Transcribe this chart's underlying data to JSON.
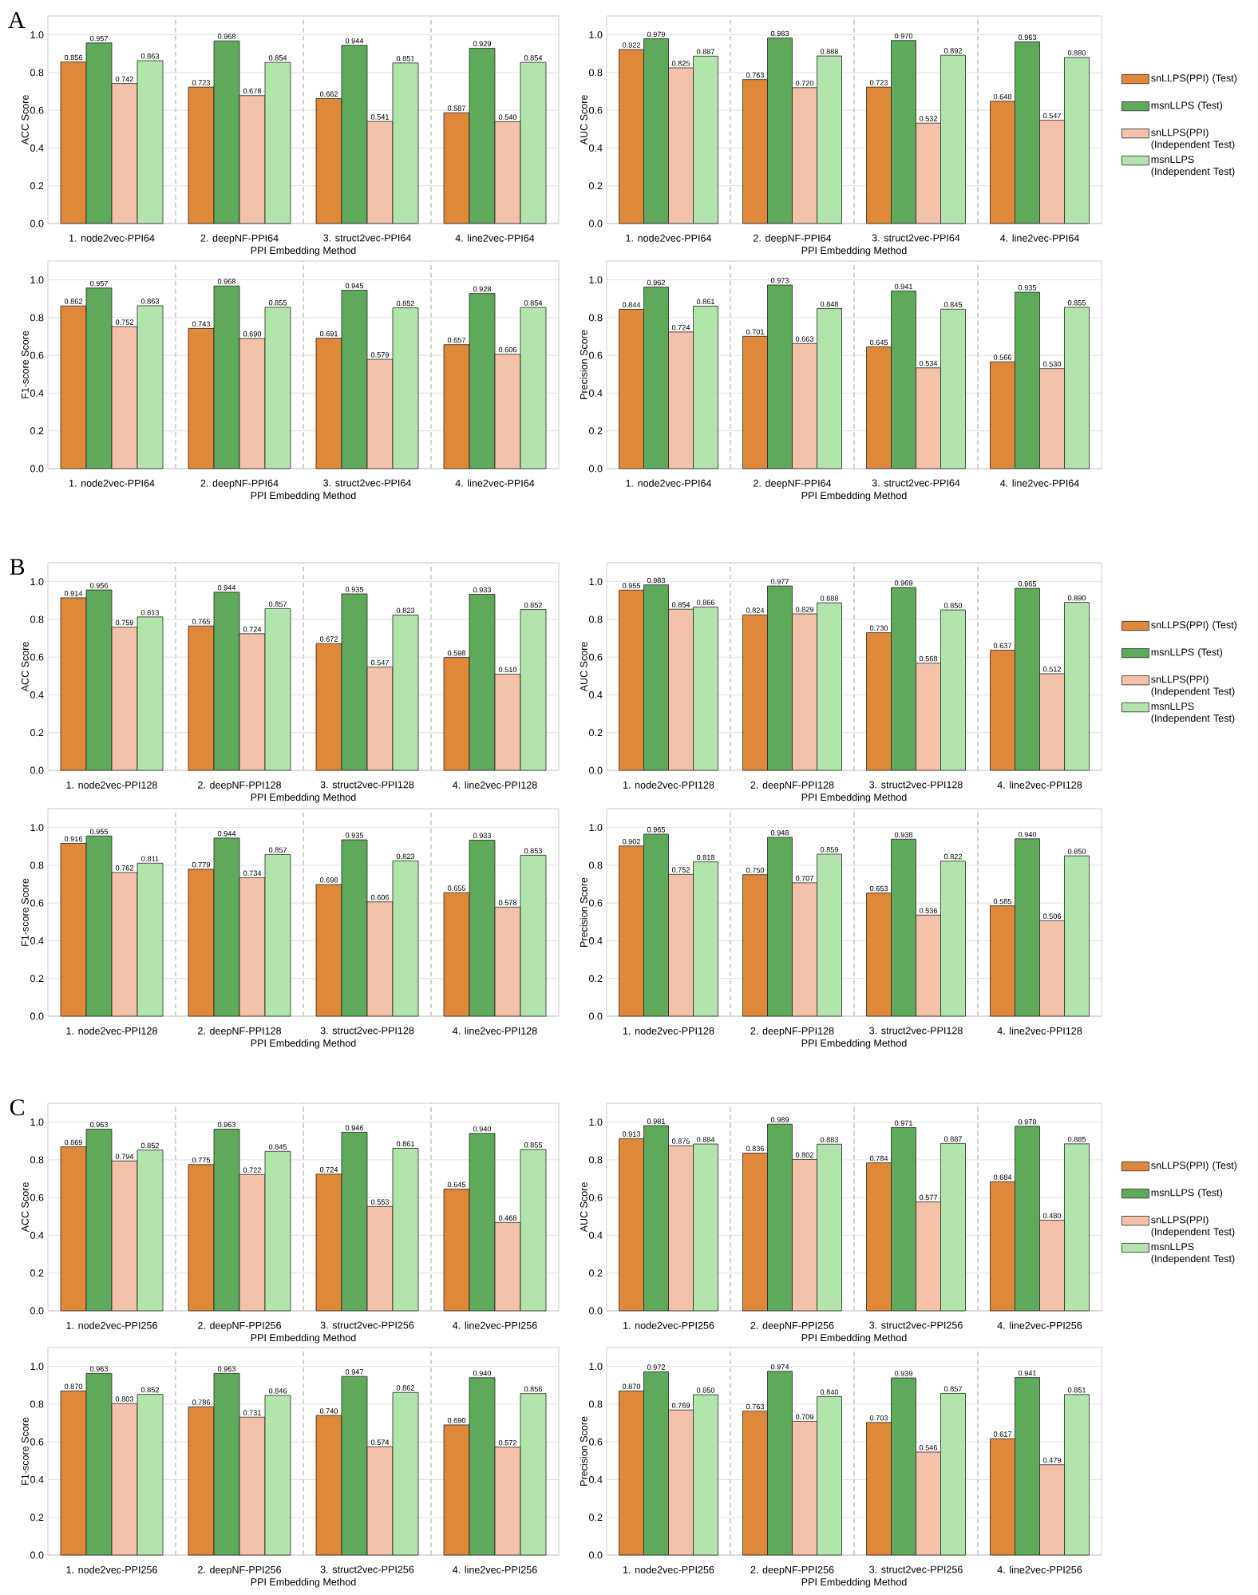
{
  "chart_data": [
    {
      "type": "bar",
      "annotations": [
        "A"
      ],
      "categories": [
        "1. node2vec-PPI64",
        "2. deepNF-PPI64",
        "3. struct2vec-PPI64",
        "4. line2vec-PPI64"
      ],
      "xlabel": "PPI Embedding Method",
      "ylabel": "ACC Score",
      "ylim": [
        0,
        1.1
      ],
      "yticks": [
        {
          "value": 0,
          "label": "0.0"
        },
        {
          "value": 0.2,
          "label": "0.2"
        },
        {
          "value": 0.4,
          "label": "0.4"
        },
        {
          "value": 0.6,
          "label": "0.6"
        },
        {
          "value": 0.8,
          "label": "0.8"
        },
        {
          "value": 1,
          "label": "1.0"
        }
      ],
      "grid": "y",
      "series": [
        {
          "color": "#e0883a",
          "values": [
            0.856,
            0.723,
            0.662,
            0.587
          ],
          "value_labels": [
            "0.856",
            "0.723",
            "0.662",
            "0.587"
          ]
        },
        {
          "color": "#5ea95a",
          "values": [
            0.957,
            0.968,
            0.944,
            0.929
          ],
          "value_labels": [
            "0.957",
            "0.968",
            "0.944",
            "0.929"
          ]
        },
        {
          "color": "#f4c2a9",
          "values": [
            0.742,
            0.678,
            0.541,
            0.54
          ],
          "value_labels": [
            "0.742",
            "0.678",
            "0.541",
            "0.540"
          ]
        },
        {
          "color": "#b2e5ab",
          "values": [
            0.863,
            0.854,
            0.851,
            0.854
          ],
          "value_labels": [
            "0.863",
            "0.854",
            "0.851",
            "0.854"
          ]
        }
      ]
    },
    {
      "type": "bar",
      "legend": "right",
      "categories": [
        "1. node2vec-PPI64",
        "2. deepNF-PPI64",
        "3. struct2vec-PPI64",
        "4. line2vec-PPI64"
      ],
      "xlabel": "PPI Embedding Method",
      "ylabel": "AUC Score",
      "ylim": [
        0,
        1.1
      ],
      "yticks": [
        {
          "value": 0,
          "label": "0.0"
        },
        {
          "value": 0.2,
          "label": "0.2"
        },
        {
          "value": 0.4,
          "label": "0.4"
        },
        {
          "value": 0.6,
          "label": "0.6"
        },
        {
          "value": 0.8,
          "label": "0.8"
        },
        {
          "value": 1,
          "label": "1.0"
        }
      ],
      "grid": "y",
      "series": [
        {
          "name": "snLLPS(PPI) (Test)",
          "color": "#e0883a",
          "values": [
            0.922,
            0.763,
            0.723,
            0.648
          ],
          "value_labels": [
            "0.922",
            "0.763",
            "0.723",
            "0.648"
          ]
        },
        {
          "name": "msnLLPS (Test)",
          "color": "#5ea95a",
          "values": [
            0.979,
            0.983,
            0.97,
            0.963
          ],
          "value_labels": [
            "0.979",
            "0.983",
            "0.970",
            "0.963"
          ]
        },
        {
          "name": "snLLPS(PPI) (Independent Test)",
          "color": "#f4c2a9",
          "values": [
            0.825,
            0.72,
            0.532,
            0.547
          ],
          "value_labels": [
            "0.825",
            "0.720",
            "0.532",
            "0.547"
          ]
        },
        {
          "name": "msnLLPS (Independent Test)",
          "color": "#b2e5ab",
          "values": [
            0.887,
            0.888,
            0.892,
            0.88
          ],
          "value_labels": [
            "0.887",
            "0.888",
            "0.892",
            "0.880"
          ]
        }
      ]
    },
    {
      "type": "bar",
      "categories": [
        "1. node2vec-PPI64",
        "2. deepNF-PPI64",
        "3. struct2vec-PPI64",
        "4. line2vec-PPI64"
      ],
      "xlabel": "PPI Embedding Method",
      "ylabel": "F1-score Score",
      "ylim": [
        0,
        1.1
      ],
      "yticks": [
        {
          "value": 0,
          "label": "0.0"
        },
        {
          "value": 0.2,
          "label": "0.2"
        },
        {
          "value": 0.4,
          "label": "0.4"
        },
        {
          "value": 0.6,
          "label": "0.6"
        },
        {
          "value": 0.8,
          "label": "0.8"
        },
        {
          "value": 1,
          "label": "1.0"
        }
      ],
      "grid": "y",
      "series": [
        {
          "color": "#e0883a",
          "values": [
            0.862,
            0.743,
            0.691,
            0.657
          ],
          "value_labels": [
            "0.862",
            "0.743",
            "0.691",
            "0.657"
          ]
        },
        {
          "color": "#5ea95a",
          "values": [
            0.957,
            0.968,
            0.945,
            0.928
          ],
          "value_labels": [
            "0.957",
            "0.968",
            "0.945",
            "0.928"
          ]
        },
        {
          "color": "#f4c2a9",
          "values": [
            0.752,
            0.69,
            0.579,
            0.606
          ],
          "value_labels": [
            "0.752",
            "0.690",
            "0.579",
            "0.606"
          ]
        },
        {
          "color": "#b2e5ab",
          "values": [
            0.863,
            0.855,
            0.852,
            0.854
          ],
          "value_labels": [
            "0.863",
            "0.855",
            "0.852",
            "0.854"
          ]
        }
      ]
    },
    {
      "type": "bar",
      "categories": [
        "1. node2vec-PPI64",
        "2. deepNF-PPI64",
        "3. struct2vec-PPI64",
        "4. line2vec-PPI64"
      ],
      "xlabel": "PPI Embedding Method",
      "ylabel": "Precision Score",
      "ylim": [
        0,
        1.1
      ],
      "yticks": [
        {
          "value": 0,
          "label": "0.0"
        },
        {
          "value": 0.2,
          "label": "0.2"
        },
        {
          "value": 0.4,
          "label": "0.4"
        },
        {
          "value": 0.6,
          "label": "0.6"
        },
        {
          "value": 0.8,
          "label": "0.8"
        },
        {
          "value": 1,
          "label": "1.0"
        }
      ],
      "grid": "y",
      "series": [
        {
          "color": "#e0883a",
          "values": [
            0.844,
            0.701,
            0.645,
            0.566
          ],
          "value_labels": [
            "0.844",
            "0.701",
            "0.645",
            "0.566"
          ]
        },
        {
          "color": "#5ea95a",
          "values": [
            0.962,
            0.973,
            0.941,
            0.935
          ],
          "value_labels": [
            "0.962",
            "0.973",
            "0.941",
            "0.935"
          ]
        },
        {
          "color": "#f4c2a9",
          "values": [
            0.724,
            0.663,
            0.534,
            0.53
          ],
          "value_labels": [
            "0.724",
            "0.663",
            "0.534",
            "0.530"
          ]
        },
        {
          "color": "#b2e5ab",
          "values": [
            0.861,
            0.848,
            0.845,
            0.855
          ],
          "value_labels": [
            "0.861",
            "0.848",
            "0.845",
            "0.855"
          ]
        }
      ]
    },
    {
      "type": "bar",
      "annotations": [
        "B"
      ],
      "categories": [
        "1. node2vec-PPI128",
        "2. deepNF-PPI128",
        "3. struct2vec-PPI128",
        "4. line2vec-PPI128"
      ],
      "xlabel": "PPI Embedding Method",
      "ylabel": "ACC Score",
      "ylim": [
        0,
        1.1
      ],
      "yticks": [
        {
          "value": 0,
          "label": "0.0"
        },
        {
          "value": 0.2,
          "label": "0.2"
        },
        {
          "value": 0.4,
          "label": "0.4"
        },
        {
          "value": 0.6,
          "label": "0.6"
        },
        {
          "value": 0.8,
          "label": "0.8"
        },
        {
          "value": 1,
          "label": "1.0"
        }
      ],
      "grid": "y",
      "series": [
        {
          "color": "#e0883a",
          "values": [
            0.914,
            0.765,
            0.672,
            0.598
          ],
          "value_labels": [
            "0.914",
            "0.765",
            "0.672",
            "0.598"
          ]
        },
        {
          "color": "#5ea95a",
          "values": [
            0.956,
            0.944,
            0.935,
            0.933
          ],
          "value_labels": [
            "0.956",
            "0.944",
            "0.935",
            "0.933"
          ]
        },
        {
          "color": "#f4c2a9",
          "values": [
            0.759,
            0.724,
            0.547,
            0.51
          ],
          "value_labels": [
            "0.759",
            "0.724",
            "0.547",
            "0.510"
          ]
        },
        {
          "color": "#b2e5ab",
          "values": [
            0.813,
            0.857,
            0.823,
            0.852
          ],
          "value_labels": [
            "0.813",
            "0.857",
            "0.823",
            "0.852"
          ]
        }
      ]
    },
    {
      "type": "bar",
      "legend": "right",
      "categories": [
        "1. node2vec-PPI128",
        "2. deepNF-PPI128",
        "3. struct2vec-PPI128",
        "4. line2vec-PPI128"
      ],
      "xlabel": "PPI Embedding Method",
      "ylabel": "AUC Score",
      "ylim": [
        0,
        1.1
      ],
      "yticks": [
        {
          "value": 0,
          "label": "0.0"
        },
        {
          "value": 0.2,
          "label": "0.2"
        },
        {
          "value": 0.4,
          "label": "0.4"
        },
        {
          "value": 0.6,
          "label": "0.6"
        },
        {
          "value": 0.8,
          "label": "0.8"
        },
        {
          "value": 1,
          "label": "1.0"
        }
      ],
      "grid": "y",
      "series": [
        {
          "name": "snLLPS(PPI) (Test)",
          "color": "#e0883a",
          "values": [
            0.955,
            0.824,
            0.73,
            0.637
          ],
          "value_labels": [
            "0.955",
            "0.824",
            "0.730",
            "0.637"
          ]
        },
        {
          "name": "msnLLPS (Test)",
          "color": "#5ea95a",
          "values": [
            0.983,
            0.977,
            0.969,
            0.965
          ],
          "value_labels": [
            "0.983",
            "0.977",
            "0.969",
            "0.965"
          ]
        },
        {
          "name": "snLLPS(PPI) (Independent Test)",
          "color": "#f4c2a9",
          "values": [
            0.854,
            0.829,
            0.568,
            0.512
          ],
          "value_labels": [
            "0.854",
            "0.829",
            "0.568",
            "0.512"
          ]
        },
        {
          "name": "msnLLPS (Independent Test)",
          "color": "#b2e5ab",
          "values": [
            0.866,
            0.888,
            0.85,
            0.89
          ],
          "value_labels": [
            "0.866",
            "0.888",
            "0.850",
            "0.890"
          ]
        }
      ]
    },
    {
      "type": "bar",
      "categories": [
        "1. node2vec-PPI128",
        "2. deepNF-PPI128",
        "3. struct2vec-PPI128",
        "4. line2vec-PPI128"
      ],
      "xlabel": "PPI Embedding Method",
      "ylabel": "F1-score Score",
      "ylim": [
        0,
        1.1
      ],
      "yticks": [
        {
          "value": 0,
          "label": "0.0"
        },
        {
          "value": 0.2,
          "label": "0.2"
        },
        {
          "value": 0.4,
          "label": "0.4"
        },
        {
          "value": 0.6,
          "label": "0.6"
        },
        {
          "value": 0.8,
          "label": "0.8"
        },
        {
          "value": 1,
          "label": "1.0"
        }
      ],
      "grid": "y",
      "series": [
        {
          "color": "#e0883a",
          "values": [
            0.916,
            0.779,
            0.698,
            0.655
          ],
          "value_labels": [
            "0.916",
            "0.779",
            "0.698",
            "0.655"
          ]
        },
        {
          "color": "#5ea95a",
          "values": [
            0.955,
            0.944,
            0.935,
            0.933
          ],
          "value_labels": [
            "0.955",
            "0.944",
            "0.935",
            "0.933"
          ]
        },
        {
          "color": "#f4c2a9",
          "values": [
            0.762,
            0.734,
            0.606,
            0.578
          ],
          "value_labels": [
            "0.762",
            "0.734",
            "0.606",
            "0.578"
          ]
        },
        {
          "color": "#b2e5ab",
          "values": [
            0.811,
            0.857,
            0.823,
            0.853
          ],
          "value_labels": [
            "0.811",
            "0.857",
            "0.823",
            "0.853"
          ]
        }
      ]
    },
    {
      "type": "bar",
      "categories": [
        "1. node2vec-PPI128",
        "2. deepNF-PPI128",
        "3. struct2vec-PPI128",
        "4. line2vec-PPI128"
      ],
      "xlabel": "PPI Embedding Method",
      "ylabel": "Precision Score",
      "ylim": [
        0,
        1.1
      ],
      "yticks": [
        {
          "value": 0,
          "label": "0.0"
        },
        {
          "value": 0.2,
          "label": "0.2"
        },
        {
          "value": 0.4,
          "label": "0.4"
        },
        {
          "value": 0.6,
          "label": "0.6"
        },
        {
          "value": 0.8,
          "label": "0.8"
        },
        {
          "value": 1,
          "label": "1.0"
        }
      ],
      "grid": "y",
      "series": [
        {
          "color": "#e0883a",
          "values": [
            0.902,
            0.75,
            0.653,
            0.585
          ],
          "value_labels": [
            "0.902",
            "0.750",
            "0.653",
            "0.585"
          ]
        },
        {
          "color": "#5ea95a",
          "values": [
            0.965,
            0.948,
            0.938,
            0.94
          ],
          "value_labels": [
            "0.965",
            "0.948",
            "0.938",
            "0.940"
          ]
        },
        {
          "color": "#f4c2a9",
          "values": [
            0.752,
            0.707,
            0.536,
            0.506
          ],
          "value_labels": [
            "0.752",
            "0.707",
            "0.536",
            "0.506"
          ]
        },
        {
          "color": "#b2e5ab",
          "values": [
            0.818,
            0.859,
            0.822,
            0.85
          ],
          "value_labels": [
            "0.818",
            "0.859",
            "0.822",
            "0.850"
          ]
        }
      ]
    },
    {
      "type": "bar",
      "annotations": [
        "C"
      ],
      "categories": [
        "1. node2vec-PPI256",
        "2. deepNF-PPI256",
        "3. struct2vec-PPI256",
        "4. line2vec-PPI256"
      ],
      "xlabel": "PPI Embedding Method",
      "ylabel": "ACC Score",
      "ylim": [
        0,
        1.1
      ],
      "yticks": [
        {
          "value": 0,
          "label": "0.0"
        },
        {
          "value": 0.2,
          "label": "0.2"
        },
        {
          "value": 0.4,
          "label": "0.4"
        },
        {
          "value": 0.6,
          "label": "0.6"
        },
        {
          "value": 0.8,
          "label": "0.8"
        },
        {
          "value": 1,
          "label": "1.0"
        }
      ],
      "grid": "y",
      "series": [
        {
          "color": "#e0883a",
          "values": [
            0.869,
            0.775,
            0.724,
            0.645
          ],
          "value_labels": [
            "0.869",
            "0.775",
            "0.724",
            "0.645"
          ]
        },
        {
          "color": "#5ea95a",
          "values": [
            0.963,
            0.963,
            0.946,
            0.94
          ],
          "value_labels": [
            "0.963",
            "0.963",
            "0.946",
            "0.940"
          ]
        },
        {
          "color": "#f4c2a9",
          "values": [
            0.794,
            0.722,
            0.553,
            0.468
          ],
          "value_labels": [
            "0.794",
            "0.722",
            "0.553",
            "0.468"
          ]
        },
        {
          "color": "#b2e5ab",
          "values": [
            0.852,
            0.845,
            0.861,
            0.855
          ],
          "value_labels": [
            "0.852",
            "0.845",
            "0.861",
            "0.855"
          ]
        }
      ]
    },
    {
      "type": "bar",
      "legend": "right",
      "categories": [
        "1. node2vec-PPI256",
        "2. deepNF-PPI256",
        "3. struct2vec-PPI256",
        "4. line2vec-PPI256"
      ],
      "xlabel": "PPI Embedding Method",
      "ylabel": "AUC Score",
      "ylim": [
        0,
        1.1
      ],
      "yticks": [
        {
          "value": 0,
          "label": "0.0"
        },
        {
          "value": 0.2,
          "label": "0.2"
        },
        {
          "value": 0.4,
          "label": "0.4"
        },
        {
          "value": 0.6,
          "label": "0.6"
        },
        {
          "value": 0.8,
          "label": "0.8"
        },
        {
          "value": 1,
          "label": "1.0"
        }
      ],
      "grid": "y",
      "series": [
        {
          "name": "snLLPS(PPI) (Test)",
          "color": "#e0883a",
          "values": [
            0.913,
            0.836,
            0.784,
            0.684
          ],
          "value_labels": [
            "0.913",
            "0.836",
            "0.784",
            "0.684"
          ]
        },
        {
          "name": "msnLLPS (Test)",
          "color": "#5ea95a",
          "values": [
            0.981,
            0.989,
            0.971,
            0.978
          ],
          "value_labels": [
            "0.981",
            "0.989",
            "0.971",
            "0.978"
          ]
        },
        {
          "name": "snLLPS(PPI) (Independent Test)",
          "color": "#f4c2a9",
          "values": [
            0.875,
            0.802,
            0.577,
            0.48
          ],
          "value_labels": [
            "0.875",
            "0.802",
            "0.577",
            "0.480"
          ]
        },
        {
          "name": "msnLLPS (Independent Test)",
          "color": "#b2e5ab",
          "values": [
            0.884,
            0.883,
            0.887,
            0.885
          ],
          "value_labels": [
            "0.884",
            "0.883",
            "0.887",
            "0.885"
          ]
        }
      ]
    },
    {
      "type": "bar",
      "categories": [
        "1. node2vec-PPI256",
        "2. deepNF-PPI256",
        "3. struct2vec-PPI256",
        "4. line2vec-PPI256"
      ],
      "xlabel": "PPI Embedding Method",
      "ylabel": "F1-score Score",
      "ylim": [
        0,
        1.1
      ],
      "yticks": [
        {
          "value": 0,
          "label": "0.0"
        },
        {
          "value": 0.2,
          "label": "0.2"
        },
        {
          "value": 0.4,
          "label": "0.4"
        },
        {
          "value": 0.6,
          "label": "0.6"
        },
        {
          "value": 0.8,
          "label": "0.8"
        },
        {
          "value": 1,
          "label": "1.0"
        }
      ],
      "grid": "y",
      "series": [
        {
          "color": "#e0883a",
          "values": [
            0.87,
            0.786,
            0.74,
            0.69
          ],
          "value_labels": [
            "0.870",
            "0.786",
            "0.740",
            "0.690"
          ]
        },
        {
          "color": "#5ea95a",
          "values": [
            0.963,
            0.963,
            0.947,
            0.94
          ],
          "value_labels": [
            "0.963",
            "0.963",
            "0.947",
            "0.940"
          ]
        },
        {
          "color": "#f4c2a9",
          "values": [
            0.803,
            0.731,
            0.574,
            0.572
          ],
          "value_labels": [
            "0.803",
            "0.731",
            "0.574",
            "0.572"
          ]
        },
        {
          "color": "#b2e5ab",
          "values": [
            0.852,
            0.846,
            0.862,
            0.856
          ],
          "value_labels": [
            "0.852",
            "0.846",
            "0.862",
            "0.856"
          ]
        }
      ]
    },
    {
      "type": "bar",
      "categories": [
        "1. node2vec-PPI256",
        "2. deepNF-PPI256",
        "3. struct2vec-PPI256",
        "4. line2vec-PPI256"
      ],
      "xlabel": "PPI Embedding Method",
      "ylabel": "Precision Score",
      "ylim": [
        0,
        1.1
      ],
      "yticks": [
        {
          "value": 0,
          "label": "0.0"
        },
        {
          "value": 0.2,
          "label": "0.2"
        },
        {
          "value": 0.4,
          "label": "0.4"
        },
        {
          "value": 0.6,
          "label": "0.6"
        },
        {
          "value": 0.8,
          "label": "0.8"
        },
        {
          "value": 1,
          "label": "1.0"
        }
      ],
      "grid": "y",
      "series": [
        {
          "color": "#e0883a",
          "values": [
            0.87,
            0.763,
            0.703,
            0.617
          ],
          "value_labels": [
            "0.870",
            "0.763",
            "0.703",
            "0.617"
          ]
        },
        {
          "color": "#5ea95a",
          "values": [
            0.972,
            0.974,
            0.939,
            0.941
          ],
          "value_labels": [
            "0.972",
            "0.974",
            "0.939",
            "0.941"
          ]
        },
        {
          "color": "#f4c2a9",
          "values": [
            0.769,
            0.709,
            0.546,
            0.479
          ],
          "value_labels": [
            "0.769",
            "0.709",
            "0.546",
            "0.479"
          ]
        },
        {
          "color": "#b2e5ab",
          "values": [
            0.85,
            0.84,
            0.857,
            0.851
          ],
          "value_labels": [
            "0.850",
            "0.840",
            "0.857",
            "0.851"
          ]
        }
      ]
    }
  ]
}
